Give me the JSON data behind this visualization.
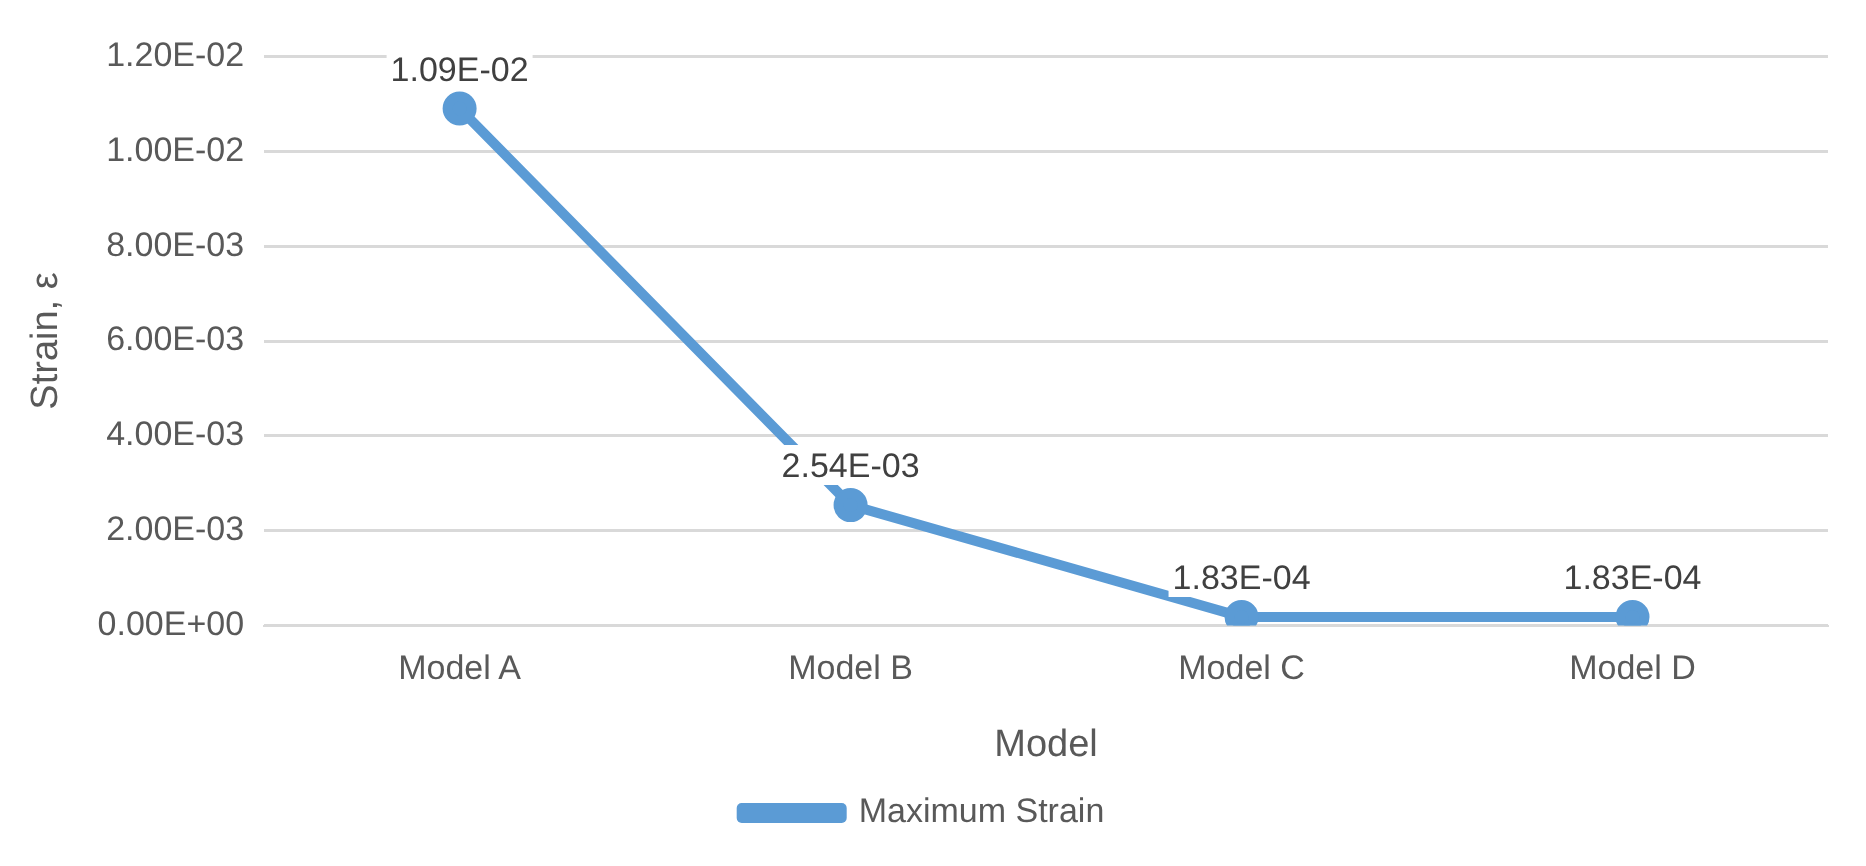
{
  "chart_data": {
    "type": "line",
    "xlabel": "Model",
    "ylabel": "Strain, ε",
    "categories": [
      "Model A",
      "Model B",
      "Model C",
      "Model D"
    ],
    "series": [
      {
        "name": "Maximum Strain",
        "color": "#5b9bd5",
        "values": [
          0.0109,
          0.00254,
          0.000183,
          0.000183
        ],
        "value_labels": [
          "1.09E-02",
          "2.54E-03",
          "1.83E-04",
          "1.83E-04"
        ]
      }
    ],
    "ylim": [
      0,
      0.012
    ],
    "yticks": [
      {
        "value": 0,
        "label": "0.00E+00"
      },
      {
        "value": 0.002,
        "label": "2.00E-03"
      },
      {
        "value": 0.004,
        "label": "4.00E-03"
      },
      {
        "value": 0.006,
        "label": "6.00E-03"
      },
      {
        "value": 0.008,
        "label": "8.00E-03"
      },
      {
        "value": 0.01,
        "label": "1.00E-02"
      },
      {
        "value": 0.012,
        "label": "1.20E-02"
      }
    ],
    "grid": "y",
    "legend": "bottom",
    "marker": "circle",
    "line_style": "solid"
  }
}
